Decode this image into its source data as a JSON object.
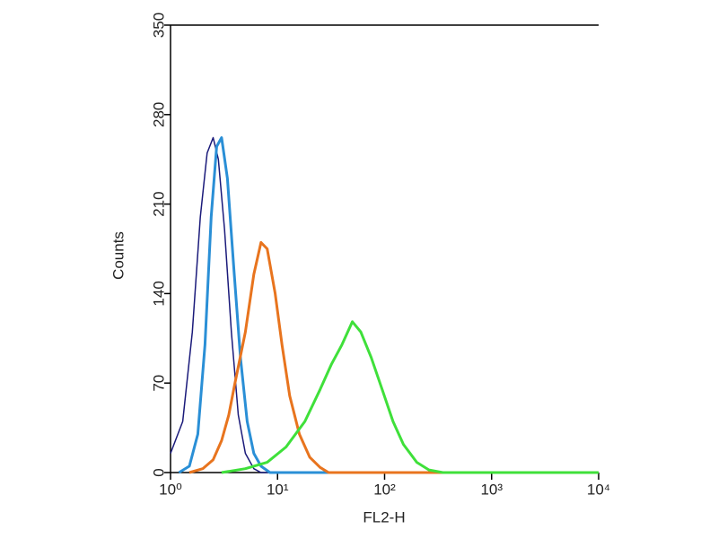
{
  "chart_data": {
    "type": "line",
    "x_label": "FL2-H",
    "y_label": "Counts",
    "xscale": "log",
    "xlim": [
      1,
      10000
    ],
    "xticks": [
      {
        "value": 1,
        "label": "10⁰"
      },
      {
        "value": 10,
        "label": "10¹"
      },
      {
        "value": 100,
        "label": "10²"
      },
      {
        "value": 1000,
        "label": "10³"
      },
      {
        "value": 10000,
        "label": "10⁴"
      }
    ],
    "ylim": [
      0,
      350
    ],
    "yticks": [
      0,
      70,
      140,
      210,
      280,
      350
    ],
    "series": [
      {
        "color": "#1a1a7a",
        "x": [
          1,
          1.3,
          1.6,
          1.9,
          2.2,
          2.5,
          2.8,
          3.2,
          3.7,
          4.3,
          5,
          6,
          7,
          10000
        ],
        "values": [
          15,
          40,
          110,
          200,
          250,
          262,
          245,
          190,
          110,
          45,
          15,
          3,
          0,
          0
        ]
      },
      {
        "color": "#2a8fd6",
        "x": [
          1.2,
          1.5,
          1.8,
          2.1,
          2.4,
          2.7,
          3,
          3.4,
          3.9,
          4.5,
          5.2,
          6,
          7,
          8.5,
          10000
        ],
        "values": [
          0,
          5,
          30,
          100,
          200,
          255,
          262,
          230,
          160,
          90,
          40,
          15,
          5,
          0,
          0
        ]
      },
      {
        "color": "#e8741e",
        "x": [
          1.5,
          2,
          2.5,
          3,
          3.5,
          4,
          5,
          6,
          7,
          8,
          9.5,
          11,
          13,
          16,
          20,
          25,
          30,
          10000
        ],
        "values": [
          0,
          3,
          10,
          25,
          45,
          70,
          110,
          155,
          180,
          175,
          140,
          100,
          60,
          30,
          12,
          4,
          0,
          0
        ]
      },
      {
        "color": "#3fe03a",
        "x": [
          3,
          5,
          8,
          12,
          18,
          25,
          32,
          40,
          50,
          60,
          75,
          95,
          120,
          150,
          200,
          260,
          350,
          10000
        ],
        "values": [
          0,
          3,
          8,
          20,
          40,
          65,
          85,
          100,
          118,
          110,
          90,
          65,
          40,
          22,
          8,
          2,
          0,
          0
        ]
      }
    ]
  }
}
